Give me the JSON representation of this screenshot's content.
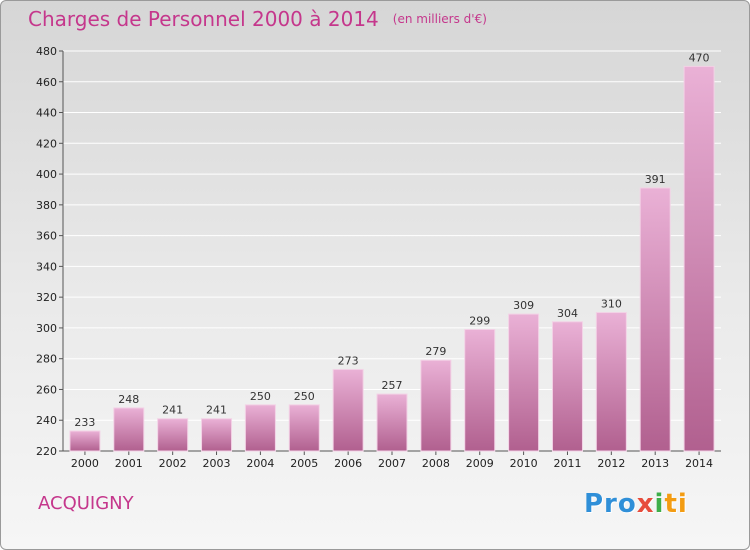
{
  "header": {
    "title": "Charges de Personnel 2000 à 2014",
    "subtitle": "(en milliers d'€)"
  },
  "footer": {
    "commune": "ACQUIGNY",
    "logo": [
      "Pro",
      "x",
      "i",
      "ti"
    ]
  },
  "colors": {
    "accent": "#c5378c",
    "bar_light": "#eab1d6",
    "bar_dark": "#b1608f"
  },
  "chart_data": {
    "type": "bar",
    "title": "Charges de Personnel 2000 à 2014",
    "subtitle": "(en milliers d'€)",
    "xlabel": "",
    "ylabel": "",
    "categories": [
      "2000",
      "2001",
      "2002",
      "2003",
      "2004",
      "2005",
      "2006",
      "2007",
      "2008",
      "2009",
      "2010",
      "2011",
      "2012",
      "2013",
      "2014"
    ],
    "values": [
      233,
      248,
      241,
      241,
      250,
      250,
      273,
      257,
      279,
      299,
      309,
      304,
      310,
      391,
      470
    ],
    "data_labels": [
      "233",
      "248",
      "241",
      "241",
      "250",
      "250",
      "273",
      "257",
      "279",
      "299",
      "309",
      "304",
      "310",
      "391",
      "470"
    ],
    "ylim": [
      220,
      480
    ],
    "yticks": [
      220,
      240,
      260,
      280,
      300,
      320,
      340,
      360,
      380,
      400,
      420,
      440,
      460,
      480
    ],
    "grid": true
  }
}
